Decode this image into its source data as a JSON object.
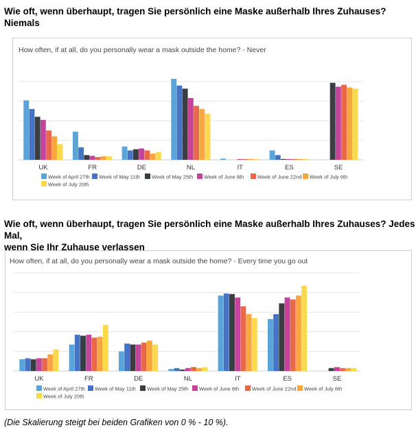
{
  "heading1": "Wie oft, wenn überhaupt, tragen Sie persönlich eine Maske außerhalb Ihres Zuhauses?",
  "heading1b": "Niemals",
  "heading2": "Wie oft, wenn überhaupt, tragen Sie persönlich eine Maske außerhalb Ihres Zuhauses? Jedes Mal,",
  "heading2b": "wenn Sie Ihr Zuhause verlassen",
  "footnote": "(Die Skalierung steigt bei beiden Grafiken von 0 % - 10 %).",
  "colors": [
    "#5ba4d9",
    "#4673c2",
    "#3a3e43",
    "#c3449a",
    "#e8694a",
    "#f7a640",
    "#fad94c"
  ],
  "chart_data": [
    {
      "type": "bar",
      "title": "How often, if at all, do you personally wear a mask outside the home? - Never",
      "categories": [
        "UK",
        "FR",
        "DE",
        "NL",
        "IT",
        "ES",
        "SE"
      ],
      "ylim": [
        0,
        10
      ],
      "grid": true,
      "legend": "bottom",
      "series": [
        {
          "name": "Week of April 27th",
          "values": [
            7.6,
            3.6,
            1.7,
            10.35,
            0.15,
            1.2,
            null
          ]
        },
        {
          "name": "Week of May 11th",
          "values": [
            6.5,
            1.6,
            1.2,
            9.5,
            0,
            0.6,
            null
          ]
        },
        {
          "name": "Week of May 25th",
          "values": [
            5.5,
            0.6,
            1.35,
            9.1,
            0,
            0.1,
            9.85
          ]
        },
        {
          "name": "Week of June 8th",
          "values": [
            5.1,
            0.5,
            1.45,
            7.9,
            0.1,
            0.1,
            9.35
          ]
        },
        {
          "name": "Week of June 22nd",
          "values": [
            3.75,
            0.35,
            1.2,
            6.9,
            0.1,
            0.1,
            9.6
          ]
        },
        {
          "name": "Week of July 6th",
          "values": [
            3.0,
            0.45,
            0.8,
            6.5,
            0.1,
            0.1,
            9.25
          ]
        },
        {
          "name": "Week of July 20th",
          "values": [
            2.0,
            0.45,
            1.0,
            5.9,
            0.1,
            0.1,
            9.1
          ]
        }
      ]
    },
    {
      "type": "bar",
      "title": "How often, if at all, do you personally wear a mask outside the home? - Every time you go out",
      "categories": [
        "UK",
        "FR",
        "DE",
        "NL",
        "IT",
        "ES",
        "SE"
      ],
      "ylim": [
        0,
        10
      ],
      "grid": true,
      "legend": "bottom",
      "series": [
        {
          "name": "Week of April 27th",
          "values": [
            1.2,
            2.7,
            2.0,
            0.2,
            7.7,
            5.3,
            null
          ]
        },
        {
          "name": "Week of May 11th",
          "values": [
            1.3,
            3.7,
            2.8,
            0.3,
            7.9,
            5.8,
            null
          ]
        },
        {
          "name": "Week of May 25th",
          "values": [
            1.2,
            3.6,
            2.7,
            0.15,
            7.85,
            6.9,
            0.3
          ]
        },
        {
          "name": "Week of June 8th",
          "values": [
            1.3,
            3.7,
            2.7,
            0.3,
            7.5,
            7.5,
            0.4
          ]
        },
        {
          "name": "Week of June 22nd",
          "values": [
            1.3,
            3.4,
            2.9,
            0.4,
            6.6,
            7.3,
            0.3
          ]
        },
        {
          "name": "Week of July 6th",
          "values": [
            1.7,
            3.5,
            3.1,
            0.3,
            5.8,
            7.7,
            0.3
          ]
        },
        {
          "name": "Week of July 20th",
          "values": [
            2.2,
            4.7,
            2.7,
            0.4,
            5.4,
            8.7,
            0.3
          ]
        }
      ]
    }
  ]
}
